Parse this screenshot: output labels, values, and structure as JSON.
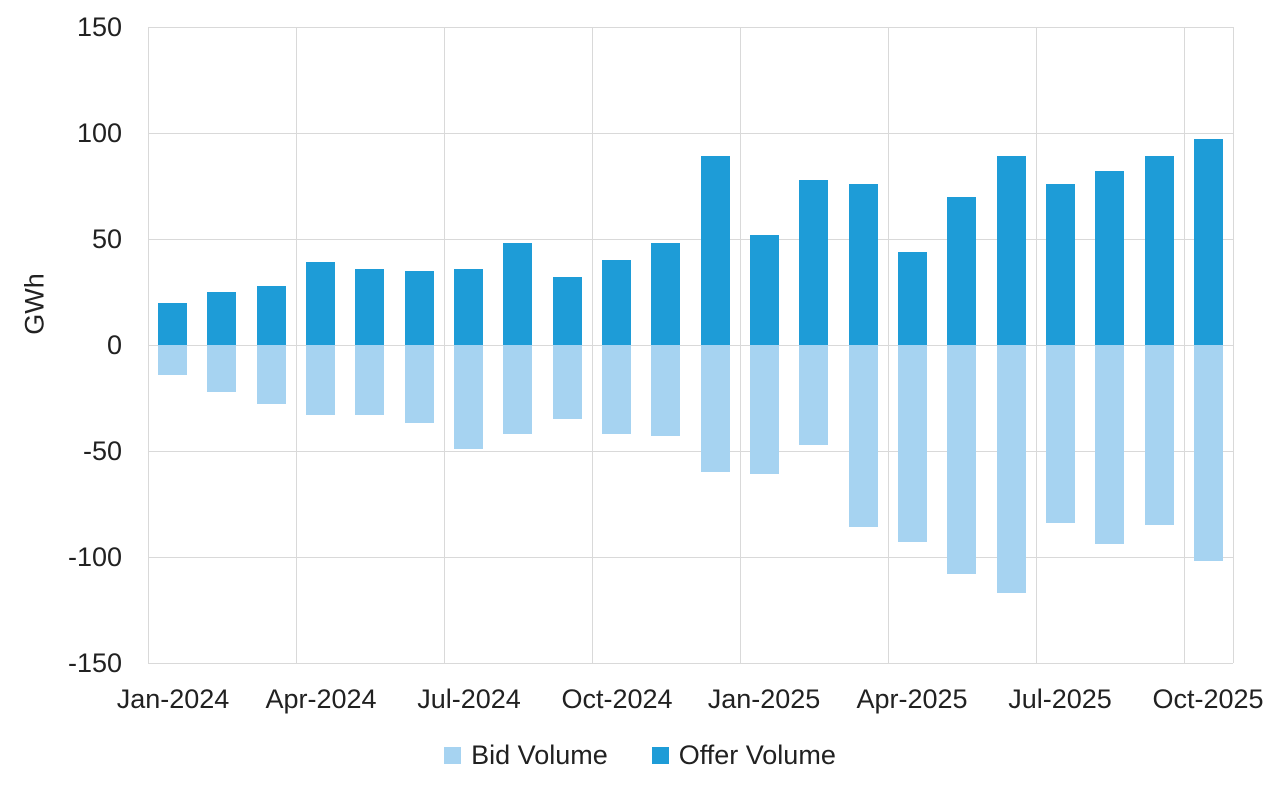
{
  "chart_data": {
    "type": "bar",
    "title": "",
    "ylabel": "GWh",
    "xlabel": "",
    "ylim": [
      -150,
      150
    ],
    "ytick_step": 50,
    "yticks": [
      150,
      100,
      50,
      0,
      -50,
      -100,
      -150
    ],
    "categories": [
      "Jan-2024",
      "Feb-2024",
      "Mar-2024",
      "Apr-2024",
      "May-2024",
      "Jun-2024",
      "Jul-2024",
      "Aug-2024",
      "Sep-2024",
      "Oct-2024",
      "Nov-2024",
      "Dec-2024",
      "Jan-2025",
      "Feb-2025",
      "Mar-2025",
      "Apr-2025",
      "May-2025",
      "Jun-2025",
      "Jul-2025",
      "Aug-2025",
      "Sep-2025",
      "Oct-2025"
    ],
    "xtick_labels": [
      "Jan-2024",
      "Apr-2024",
      "Jul-2024",
      "Oct-2024",
      "Jan-2025",
      "Apr-2025",
      "Jul-2025",
      "Oct-2025"
    ],
    "xtick_every_n_categories": 3,
    "vertical_gridline_every_n_categories": 3,
    "grid": true,
    "legend_position": "bottom",
    "series": [
      {
        "name": "Bid Volume",
        "color": "#A6D3F1",
        "values": [
          -14,
          -22,
          -28,
          -33,
          -33,
          -37,
          -49,
          -42,
          -35,
          -42,
          -43,
          -60,
          -61,
          -47,
          -86,
          -93,
          -108,
          -117,
          -84,
          -94,
          -85,
          -102
        ]
      },
      {
        "name": "Offer Volume",
        "color": "#1E9CD7",
        "values": [
          20,
          25,
          28,
          39,
          36,
          35,
          36,
          48,
          32,
          40,
          48,
          89,
          52,
          78,
          76,
          44,
          70,
          89,
          76,
          82,
          89,
          97
        ]
      }
    ]
  },
  "legend": {
    "items": [
      {
        "label": "Bid Volume",
        "color": "#A6D3F1"
      },
      {
        "label": "Offer Volume",
        "color": "#1E9CD7"
      }
    ]
  },
  "colors": {
    "bid": "#A6D3F1",
    "offer": "#1E9CD7",
    "gridline": "#D9D9D9",
    "text": "#212121",
    "background": "#FFFFFF"
  }
}
